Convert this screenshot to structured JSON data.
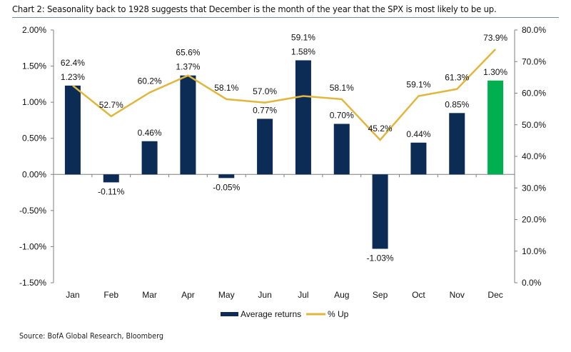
{
  "header": {
    "title": "Chart 2: Seasonality back to 1928 suggests that December is the month of the year that the SPX is most likely to be up."
  },
  "footer": {
    "source": "Source: BofA Global Research, Bloomberg"
  },
  "colors": {
    "bar": "#0c2b55",
    "highlight_bar": "#00b050",
    "line": "#e1b63c",
    "axis": "#7f7f7f"
  },
  "chart_data": {
    "type": "bar",
    "title": "Chart 2: Seasonality back to 1928 suggests that December is the month of the year that the SPX is most likely to be up.",
    "xlabel": "",
    "ylabel": "",
    "categories": [
      "Jan",
      "Feb",
      "Mar",
      "Apr",
      "May",
      "Jun",
      "Jul",
      "Aug",
      "Sep",
      "Oct",
      "Nov",
      "Dec"
    ],
    "series": [
      {
        "name": "Average returns",
        "type": "bar",
        "axis": "left",
        "values": [
          1.23,
          -0.11,
          0.46,
          1.37,
          -0.05,
          0.77,
          1.58,
          0.7,
          -1.03,
          0.44,
          0.85,
          1.3
        ],
        "labels": [
          "1.23%",
          "-0.11%",
          "0.46%",
          "1.37%",
          "-0.05%",
          "0.77%",
          "1.58%",
          "0.70%",
          "-1.03%",
          "0.44%",
          "0.85%",
          "1.30%"
        ],
        "highlight_index": 11
      },
      {
        "name": "% Up",
        "type": "line",
        "axis": "right",
        "values": [
          62.4,
          52.7,
          60.2,
          65.6,
          58.1,
          57.0,
          59.1,
          58.1,
          45.2,
          59.1,
          61.3,
          73.9
        ],
        "labels": [
          "62.4%",
          "52.7%",
          "60.2%",
          "65.6%",
          "58.1%",
          "57.0%",
          "59.1%",
          "58.1%",
          "45.2%",
          "59.1%",
          "61.3%",
          "73.9%"
        ]
      }
    ],
    "y_left": {
      "ylim": [
        -1.5,
        2.0
      ],
      "ticks": [
        2.0,
        1.5,
        1.0,
        0.5,
        0.0,
        -0.5,
        -1.0,
        -1.5
      ],
      "tick_labels": [
        "2.00%",
        "1.50%",
        "1.00%",
        "0.50%",
        "0.00%",
        "-0.50%",
        "-1.00%",
        "-1.50%"
      ]
    },
    "y_right": {
      "ylim": [
        0,
        80
      ],
      "ticks": [
        80,
        70,
        60,
        50,
        40,
        30,
        20,
        10,
        0
      ],
      "tick_labels": [
        "80.0%",
        "70.0%",
        "60.0%",
        "50.0%",
        "40.0%",
        "30.0%",
        "20.0%",
        "10.0%",
        "0.0%"
      ]
    },
    "grid": false,
    "legend": {
      "position": "bottom-center",
      "entries": [
        "Average returns",
        "% Up"
      ]
    }
  }
}
